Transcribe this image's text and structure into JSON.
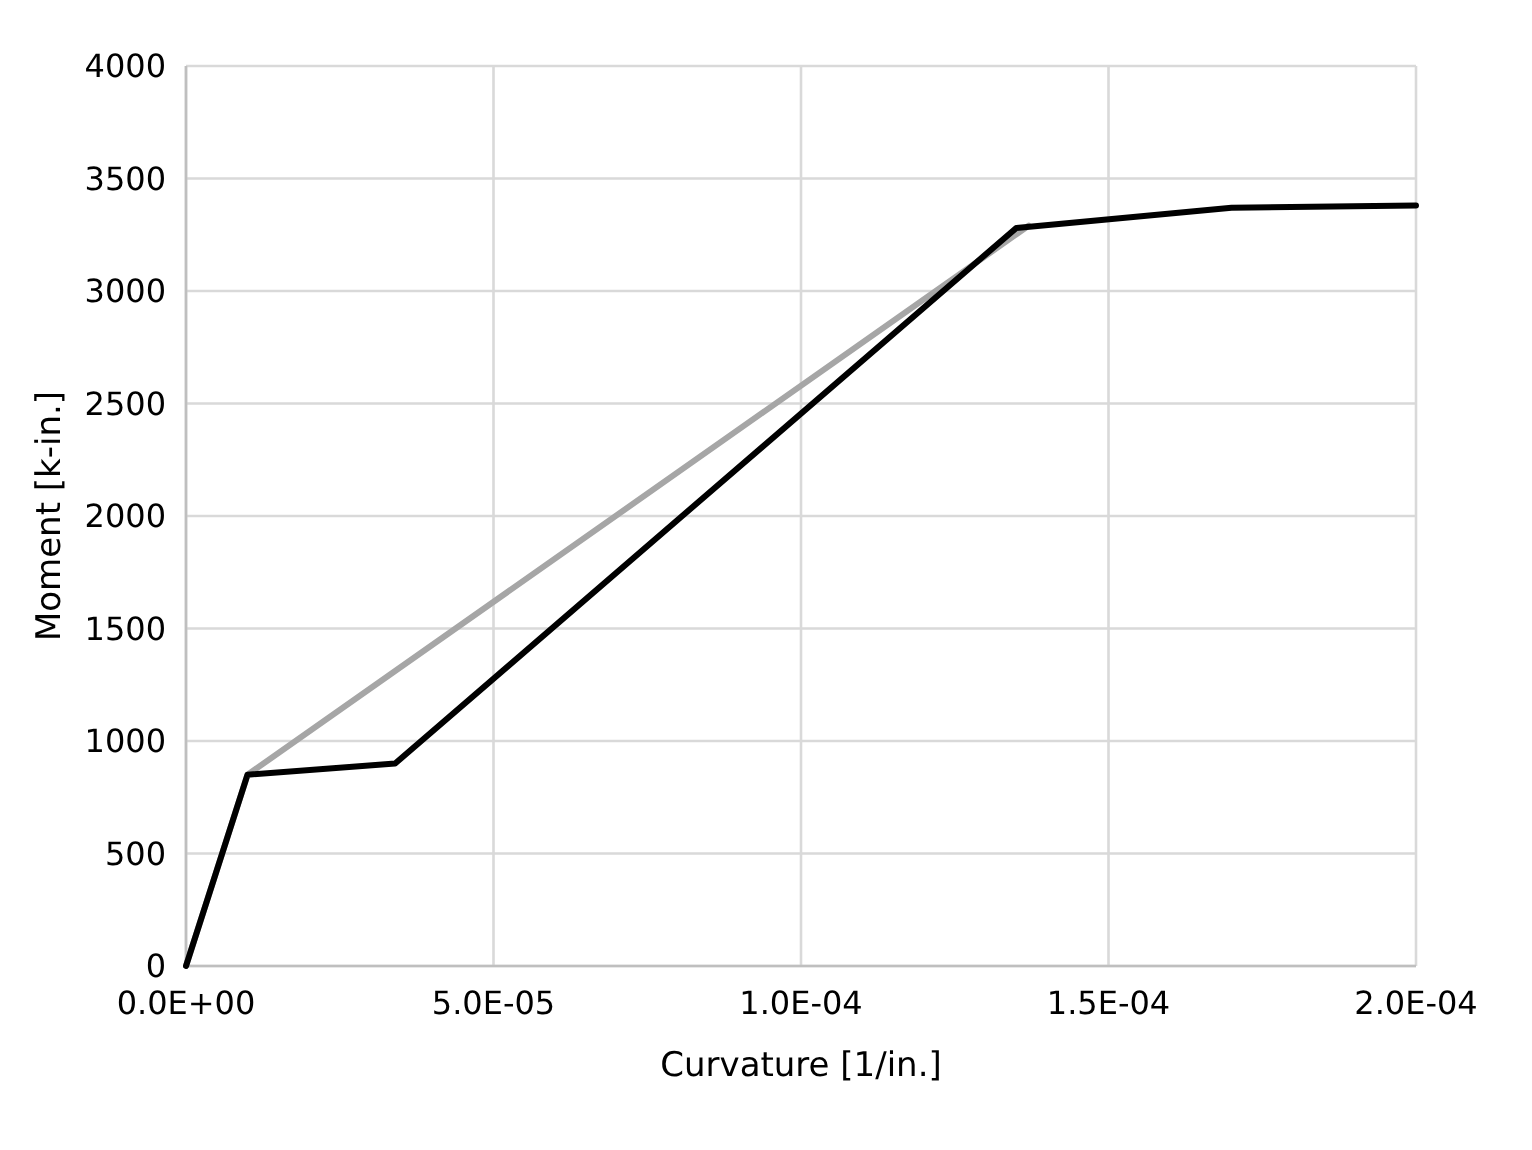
{
  "chart_data": {
    "type": "line",
    "xlabel": "Curvature [1/in.]",
    "ylabel": "Moment [k-in.]",
    "xlim": [
      0,
      0.0002
    ],
    "xticks": [
      {
        "value": 0,
        "label": "0.0E+00"
      },
      {
        "value": 5e-05,
        "label": "5.0E-05"
      },
      {
        "value": 0.0001,
        "label": "1.0E-04"
      },
      {
        "value": 0.00015,
        "label": "1.5E-04"
      },
      {
        "value": 0.0002,
        "label": "2.0E-04"
      }
    ],
    "ylim": [
      0,
      4000
    ],
    "yticks": [
      0,
      500,
      1000,
      1500,
      2000,
      2500,
      3000,
      3500,
      4000
    ],
    "grid": true,
    "marker": "none",
    "line_style": "solid",
    "series": [
      {
        "color": "#000000",
        "x": [
          0,
          1e-05,
          3.4e-05,
          0.000135,
          0.00017,
          0.0002
        ],
        "values": [
          0,
          850,
          900,
          3280,
          3370,
          3380
        ]
      },
      {
        "color": "#a6a6a6",
        "x": [
          0,
          1e-05,
          0.000137
        ],
        "values": [
          0,
          850,
          3290
        ]
      }
    ]
  }
}
